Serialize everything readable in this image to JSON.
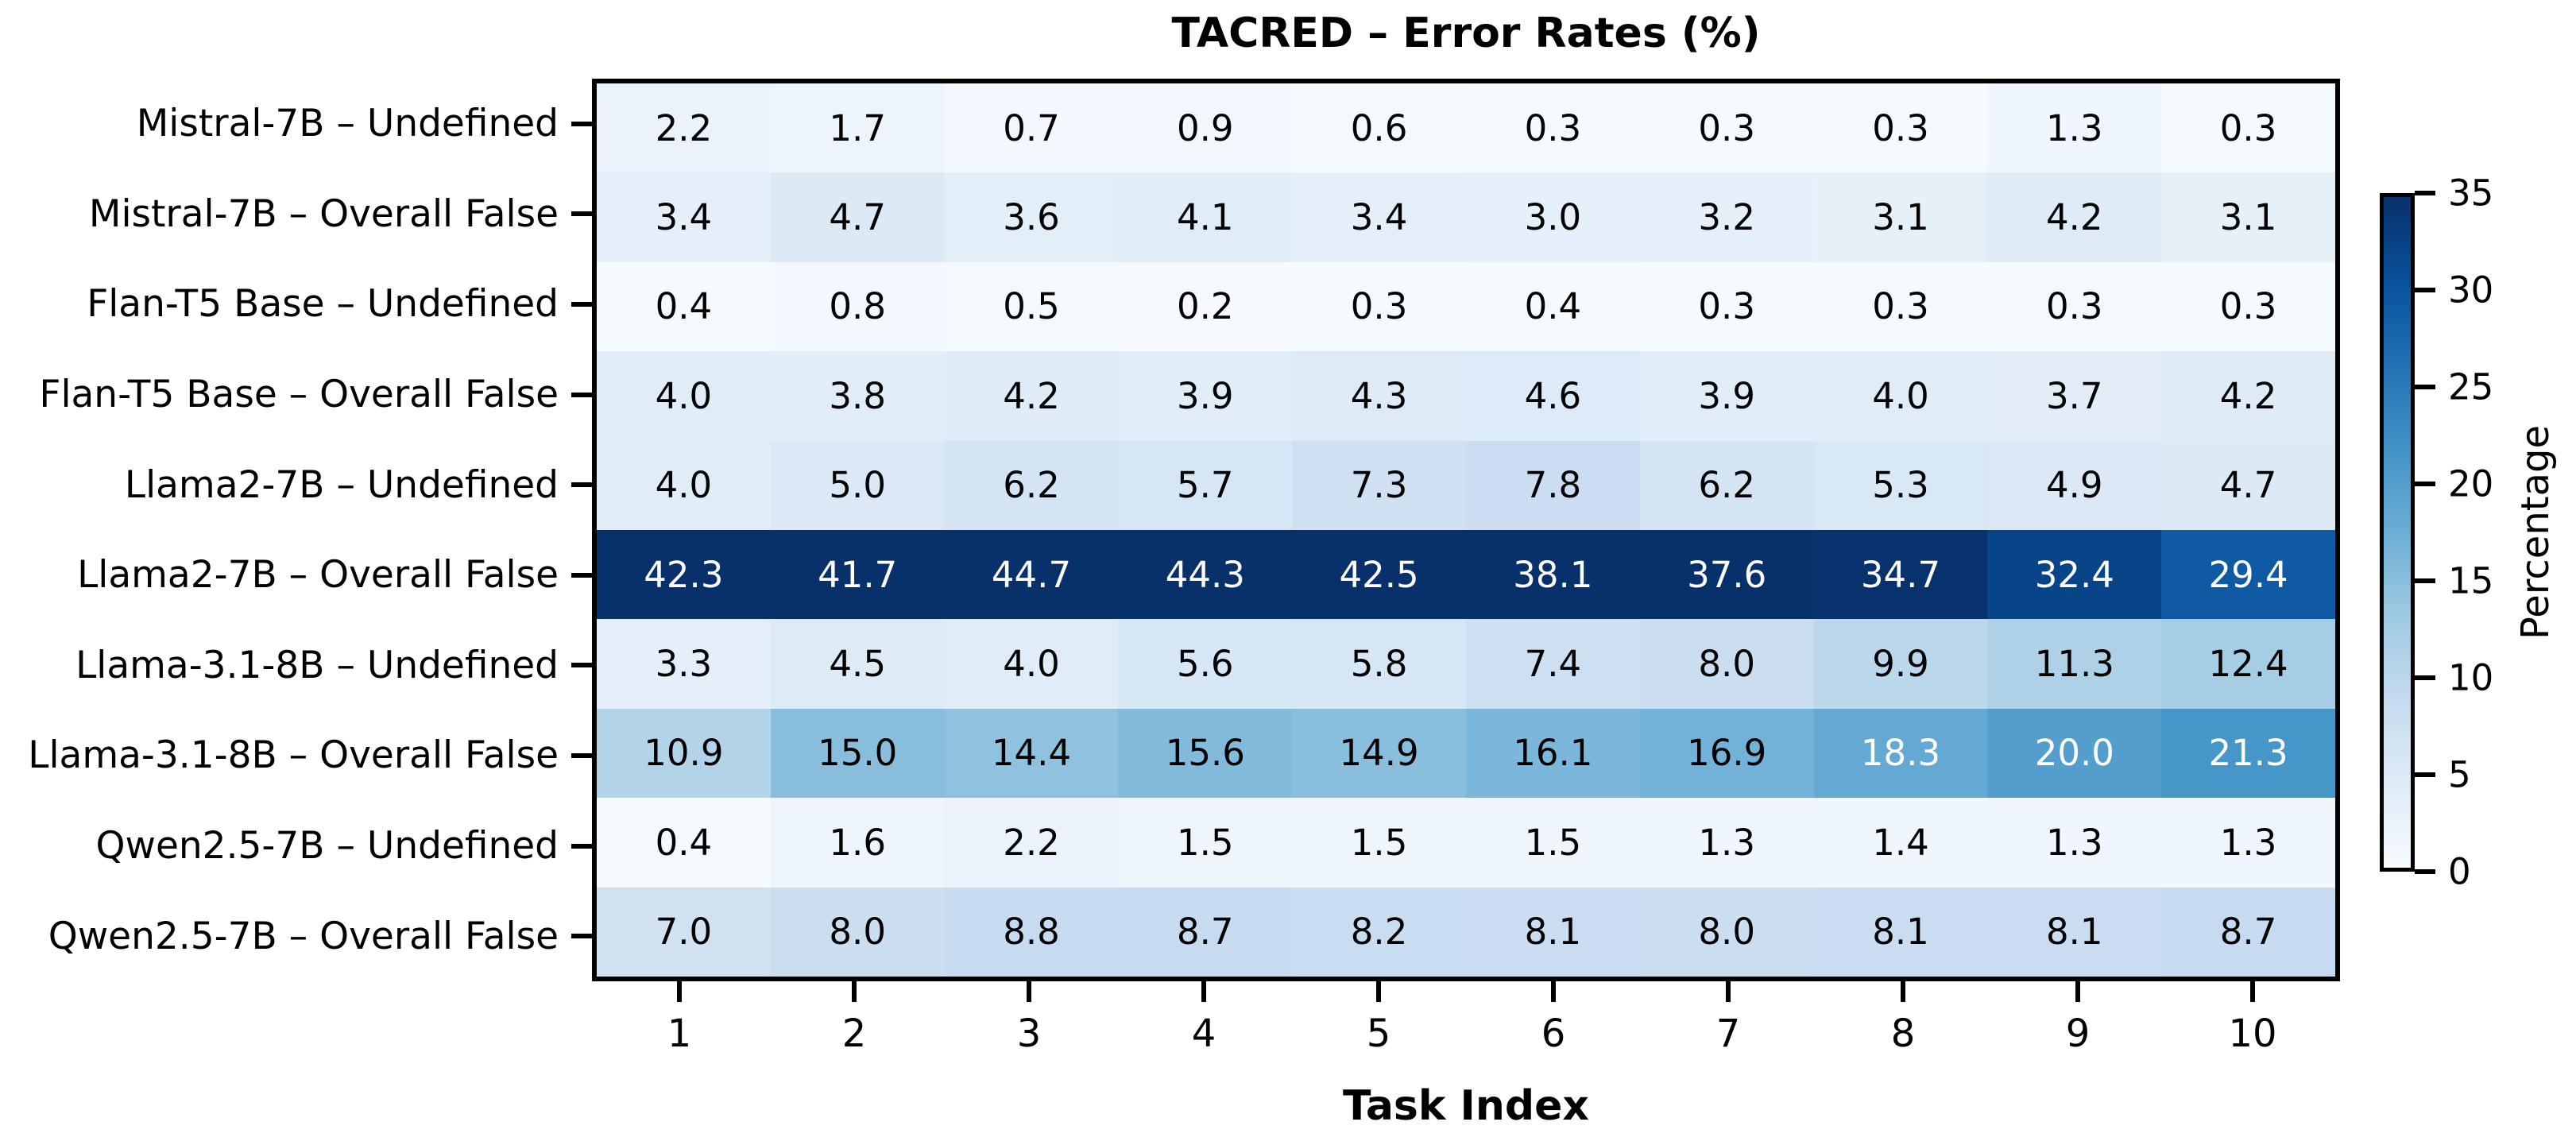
{
  "chart_data": {
    "type": "heatmap",
    "title": "TACRED – Error Rates (%)",
    "xlabel": "Task Index",
    "colorbar_label": "Percentage",
    "colormap": "Blues",
    "vmin": 0,
    "vmax": 35,
    "grid": false,
    "x_ticks": [
      "1",
      "2",
      "3",
      "4",
      "5",
      "6",
      "7",
      "8",
      "9",
      "10"
    ],
    "colorbar_ticks": [
      0,
      5,
      10,
      15,
      20,
      25,
      30,
      35
    ],
    "rows": [
      "Mistral-7B – Undefined",
      "Mistral-7B – Overall False",
      "Flan-T5 Base – Undefined",
      "Flan-T5 Base – Overall False",
      "Llama2-7B – Undefined",
      "Llama2-7B – Overall False",
      "Llama-3.1-8B – Undefined",
      "Llama-3.1-8B – Overall False",
      "Qwen2.5-7B – Undefined",
      "Qwen2.5-7B – Overall False"
    ],
    "values": [
      [
        2.2,
        1.7,
        0.7,
        0.9,
        0.6,
        0.3,
        0.3,
        0.3,
        1.3,
        0.3
      ],
      [
        3.4,
        4.7,
        3.6,
        4.1,
        3.4,
        3.0,
        3.2,
        3.1,
        4.2,
        3.1
      ],
      [
        0.4,
        0.8,
        0.5,
        0.2,
        0.3,
        0.4,
        0.3,
        0.3,
        0.3,
        0.3
      ],
      [
        4.0,
        3.8,
        4.2,
        3.9,
        4.3,
        4.6,
        3.9,
        4.0,
        3.7,
        4.2
      ],
      [
        4.0,
        5.0,
        6.2,
        5.7,
        7.3,
        7.8,
        6.2,
        5.3,
        4.9,
        4.7
      ],
      [
        42.3,
        41.7,
        44.7,
        44.3,
        42.5,
        38.1,
        37.6,
        34.7,
        32.4,
        29.4
      ],
      [
        3.3,
        4.5,
        4.0,
        5.6,
        5.8,
        7.4,
        8.0,
        9.9,
        11.3,
        12.4
      ],
      [
        10.9,
        15.0,
        14.4,
        15.6,
        14.9,
        16.1,
        16.9,
        18.3,
        20.0,
        21.3
      ],
      [
        0.4,
        1.6,
        2.2,
        1.5,
        1.5,
        1.5,
        1.3,
        1.4,
        1.3,
        1.3
      ],
      [
        7.0,
        8.0,
        8.8,
        8.7,
        8.2,
        8.1,
        8.0,
        8.1,
        8.1,
        8.7
      ]
    ],
    "colormap_anchors": [
      "#f7fbff",
      "#deebf7",
      "#c6dbef",
      "#9ecae1",
      "#6baed6",
      "#4292c6",
      "#2171b5",
      "#08519c",
      "#08306b"
    ],
    "annotation_text": {
      "on_light": "#000000",
      "on_dark": "#ffffff"
    },
    "axis_color": "#000000",
    "background_color": "#ffffff"
  }
}
